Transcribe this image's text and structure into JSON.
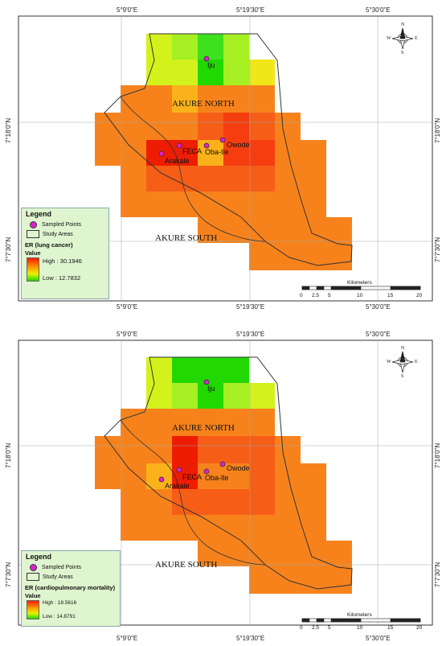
{
  "maps": [
    {
      "lon_labels": [
        "5°9'0\"E",
        "5°19'30\"E",
        "5°30'0\"E"
      ],
      "lat_labels": [
        "7°18'0\"N",
        "7°7'30\"N"
      ],
      "regions": [
        "AKURE NORTH",
        "AKURE SOUTH"
      ],
      "points": [
        "Iju",
        "FECA",
        "Oba-Ile",
        "Owode",
        "Arakale"
      ],
      "legend": {
        "title": "Legend",
        "sampled": "Sampled Points",
        "study": "Study Areas",
        "variable": "ER (lung cancer)",
        "value_label": "Value",
        "high": "High : 30.1946",
        "low": "Low : 12.7832"
      },
      "scale": {
        "unit": "Kilometers",
        "ticks": [
          "0",
          "2.5",
          "5",
          "10",
          "15",
          "20"
        ]
      },
      "compass": {
        "n": "N",
        "s": "S",
        "e": "E",
        "w": "W"
      }
    },
    {
      "lon_labels": [
        "5°9'0\"E",
        "5°19'30\"E",
        "5°30'0\"E"
      ],
      "lat_labels": [
        "7°18'0\"N",
        "7°7'30\"N"
      ],
      "regions": [
        "AKURE NORTH",
        "AKURE SOUTH"
      ],
      "points": [
        "Iju",
        "FECA",
        "Oba-Ile",
        "Owode",
        "Arakale"
      ],
      "legend": {
        "title": "Legend",
        "sampled": "Sampled Points",
        "study": "Study Areas",
        "variable": "ER (cardiopulmonary mortality)",
        "value_label": "Value",
        "high": "High : 18.5616",
        "low": "Low : 14.8791"
      },
      "scale": {
        "unit": "Kilometers",
        "ticks": [
          "0",
          "2.5",
          "5",
          "10",
          "15",
          "20"
        ]
      },
      "compass": {
        "n": "N",
        "s": "S",
        "e": "E",
        "w": "W"
      }
    }
  ],
  "colors": {
    "red": "#ee1c00",
    "red_orange": "#f53d10",
    "orange_red": "#f65e18",
    "orange": "#f7821c",
    "yellow_orange": "#fbb21a",
    "yellow": "#f0e71a",
    "yellow_green": "#d3f21c",
    "light_green": "#a6ef22",
    "green": "#3ee11e",
    "bright_green": "#21d800",
    "legend_bg": "#dff5cf",
    "point_fill": "#e01fcf"
  }
}
